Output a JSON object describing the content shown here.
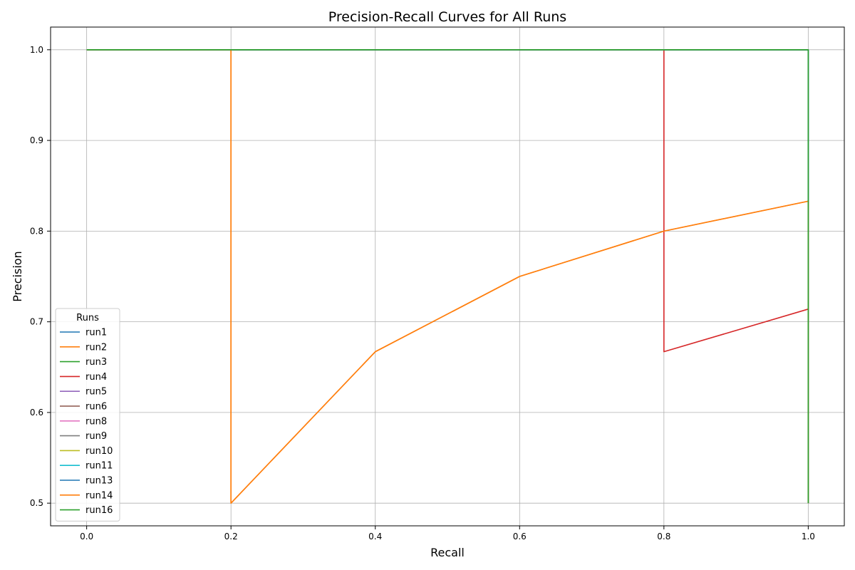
{
  "chart_data": {
    "type": "line",
    "title": "Precision-Recall Curves for All Runs",
    "xlabel": "Recall",
    "ylabel": "Precision",
    "xlim": [
      -0.05,
      1.05
    ],
    "ylim": [
      0.475,
      1.025
    ],
    "xticks": [
      0.0,
      0.2,
      0.4,
      0.6,
      0.8,
      1.0
    ],
    "xtick_labels": [
      "0.0",
      "0.2",
      "0.4",
      "0.6",
      "0.8",
      "1.0"
    ],
    "yticks": [
      0.5,
      0.6,
      0.7,
      0.8,
      0.9,
      1.0
    ],
    "ytick_labels": [
      "0.5",
      "0.6",
      "0.7",
      "0.8",
      "0.9",
      "1.0"
    ],
    "grid": true,
    "legend": {
      "title": "Runs",
      "placement": "lower-left"
    },
    "series": [
      {
        "name": "run1",
        "color": "#1f77b4",
        "x": [
          0.0,
          1.0,
          1.0
        ],
        "y": [
          1.0,
          1.0,
          0.5
        ]
      },
      {
        "name": "run2",
        "color": "#ff7f0e",
        "x": [
          0.0,
          0.2,
          0.2,
          0.4,
          0.6,
          0.8,
          1.0,
          1.0
        ],
        "y": [
          1.0,
          1.0,
          0.5,
          0.667,
          0.75,
          0.8,
          0.833,
          0.5
        ]
      },
      {
        "name": "run3",
        "color": "#2ca02c",
        "x": [
          0.0,
          1.0,
          1.0
        ],
        "y": [
          1.0,
          1.0,
          0.5
        ]
      },
      {
        "name": "run4",
        "color": "#d62728",
        "x": [
          0.0,
          0.8,
          0.8,
          1.0,
          1.0
        ],
        "y": [
          1.0,
          1.0,
          0.667,
          0.714,
          0.5
        ]
      },
      {
        "name": "run5",
        "color": "#9467bd",
        "x": [
          0.0,
          1.0,
          1.0
        ],
        "y": [
          1.0,
          1.0,
          0.5
        ]
      },
      {
        "name": "run6",
        "color": "#8c564b",
        "x": [
          0.0,
          1.0,
          1.0
        ],
        "y": [
          1.0,
          1.0,
          0.5
        ]
      },
      {
        "name": "run8",
        "color": "#e377c2",
        "x": [
          0.0,
          1.0,
          1.0
        ],
        "y": [
          1.0,
          1.0,
          0.5
        ]
      },
      {
        "name": "run9",
        "color": "#7f7f7f",
        "x": [
          0.0,
          1.0,
          1.0
        ],
        "y": [
          1.0,
          1.0,
          0.5
        ]
      },
      {
        "name": "run10",
        "color": "#bcbd22",
        "x": [
          0.0,
          1.0,
          1.0
        ],
        "y": [
          1.0,
          1.0,
          0.5
        ]
      },
      {
        "name": "run11",
        "color": "#17becf",
        "x": [
          0.0,
          1.0,
          1.0
        ],
        "y": [
          1.0,
          1.0,
          0.5
        ]
      },
      {
        "name": "run13",
        "color": "#1f77b4",
        "x": [
          0.0,
          1.0,
          1.0
        ],
        "y": [
          1.0,
          1.0,
          0.5
        ]
      },
      {
        "name": "run14",
        "color": "#ff7f0e",
        "x": [
          0.0,
          0.2,
          0.2,
          0.4,
          0.6,
          0.8,
          1.0,
          1.0
        ],
        "y": [
          1.0,
          1.0,
          0.5,
          0.667,
          0.75,
          0.8,
          0.833,
          0.5
        ]
      },
      {
        "name": "run16",
        "color": "#2ca02c",
        "x": [
          0.0,
          1.0,
          1.0
        ],
        "y": [
          1.0,
          1.0,
          0.5
        ]
      }
    ]
  }
}
